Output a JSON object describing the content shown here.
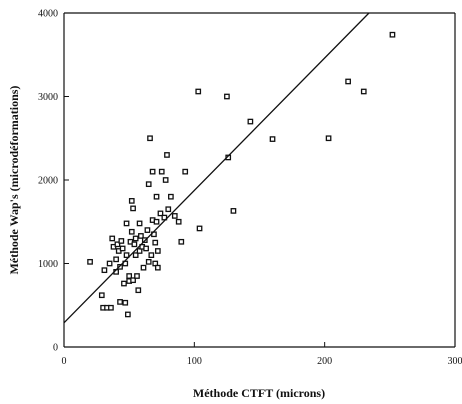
{
  "chart_data": {
    "type": "scatter",
    "title": "",
    "xlabel": "Méthode CTFT (microns)",
    "ylabel": "Méthode Wap's (microdéformations)",
    "xlim": [
      0,
      300
    ],
    "ylim": [
      0,
      4000
    ],
    "xticks": [
      0,
      100,
      200,
      300
    ],
    "yticks": [
      0,
      1000,
      2000,
      3000,
      4000
    ],
    "grid": false,
    "series": [
      {
        "points": [
          [
            20,
            1020
          ],
          [
            29,
            620
          ],
          [
            30,
            470
          ],
          [
            31,
            920
          ],
          [
            33,
            470
          ],
          [
            35,
            1000
          ],
          [
            36,
            470
          ],
          [
            37,
            1300
          ],
          [
            38,
            1200
          ],
          [
            40,
            1050
          ],
          [
            40,
            900
          ],
          [
            41,
            1230
          ],
          [
            42,
            1150
          ],
          [
            43,
            960
          ],
          [
            43,
            540
          ],
          [
            44,
            1270
          ],
          [
            45,
            1180
          ],
          [
            46,
            760
          ],
          [
            47,
            530
          ],
          [
            47,
            1000
          ],
          [
            48,
            1100
          ],
          [
            48,
            1480
          ],
          [
            49,
            390
          ],
          [
            50,
            850
          ],
          [
            50,
            790
          ],
          [
            51,
            1260
          ],
          [
            52,
            1380
          ],
          [
            52,
            1750
          ],
          [
            53,
            1660
          ],
          [
            53,
            800
          ],
          [
            54,
            1230
          ],
          [
            55,
            1300
          ],
          [
            55,
            1100
          ],
          [
            56,
            850
          ],
          [
            57,
            680
          ],
          [
            58,
            1150
          ],
          [
            58,
            1480
          ],
          [
            59,
            1330
          ],
          [
            60,
            1200
          ],
          [
            61,
            950
          ],
          [
            62,
            1280
          ],
          [
            63,
            1180
          ],
          [
            64,
            1400
          ],
          [
            65,
            1020
          ],
          [
            65,
            1950
          ],
          [
            66,
            2500
          ],
          [
            67,
            1100
          ],
          [
            68,
            1520
          ],
          [
            68,
            2100
          ],
          [
            69,
            1350
          ],
          [
            70,
            1000
          ],
          [
            70,
            1250
          ],
          [
            71,
            1800
          ],
          [
            71,
            1500
          ],
          [
            72,
            950
          ],
          [
            72,
            1150
          ],
          [
            74,
            1600
          ],
          [
            75,
            2100
          ],
          [
            77,
            1550
          ],
          [
            78,
            2000
          ],
          [
            79,
            2300
          ],
          [
            80,
            1650
          ],
          [
            82,
            1800
          ],
          [
            85,
            1570
          ],
          [
            88,
            1500
          ],
          [
            90,
            1260
          ],
          [
            93,
            2100
          ],
          [
            103,
            3060
          ],
          [
            104,
            1420
          ],
          [
            125,
            3000
          ],
          [
            126,
            2270
          ],
          [
            130,
            1630
          ],
          [
            143,
            2700
          ],
          [
            160,
            2490
          ],
          [
            203,
            2500
          ],
          [
            218,
            3180
          ],
          [
            230,
            3060
          ],
          [
            252,
            3740
          ]
        ]
      }
    ],
    "fit_line": {
      "x": [
        0,
        234
      ],
      "y": [
        290,
        4000
      ]
    }
  }
}
